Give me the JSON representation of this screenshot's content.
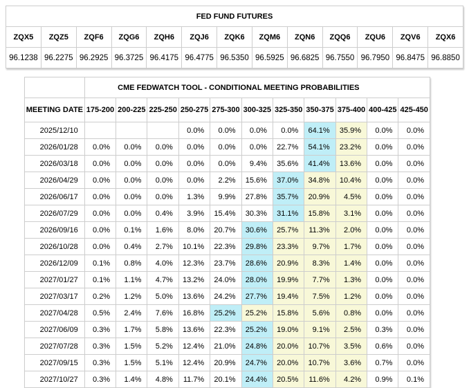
{
  "colors": {
    "highlight_blue": "#bfeef7",
    "highlight_yellow": "#f8f8d8",
    "border": "#cdcdcd",
    "text": "#000000",
    "background": "#ffffff"
  },
  "futures_table": {
    "title": "FED FUND FUTURES",
    "contracts": [
      {
        "code": "ZQX5",
        "price": "96.1238"
      },
      {
        "code": "ZQZ5",
        "price": "96.2275"
      },
      {
        "code": "ZQF6",
        "price": "96.2925"
      },
      {
        "code": "ZQG6",
        "price": "96.3725"
      },
      {
        "code": "ZQH6",
        "price": "96.4175"
      },
      {
        "code": "ZQJ6",
        "price": "96.4775"
      },
      {
        "code": "ZQK6",
        "price": "96.5350"
      },
      {
        "code": "ZQM6",
        "price": "96.5925"
      },
      {
        "code": "ZQN6",
        "price": "96.6825"
      },
      {
        "code": "ZQQ6",
        "price": "96.7550"
      },
      {
        "code": "ZQU6",
        "price": "96.7950"
      },
      {
        "code": "ZQV6",
        "price": "96.8475"
      },
      {
        "code": "ZQX6",
        "price": "96.8850"
      }
    ]
  },
  "fedwatch_table": {
    "title": "CME FEDWATCH TOOL - CONDITIONAL MEETING PROBABILITIES",
    "date_column_header": "MEETING DATE",
    "rate_range_headers": [
      "175-200",
      "200-225",
      "225-250",
      "250-275",
      "275-300",
      "300-325",
      "325-350",
      "350-375",
      "375-400",
      "400-425",
      "425-450"
    ],
    "rows": [
      {
        "date": "2025/12/10",
        "values": [
          "",
          "",
          "",
          "0.0%",
          "0.0%",
          "0.0%",
          "0.0%",
          "64.1%",
          "35.9%",
          "0.0%",
          "0.0%"
        ],
        "blue": 7,
        "yellow": [
          8
        ]
      },
      {
        "date": "2026/01/28",
        "values": [
          "0.0%",
          "0.0%",
          "0.0%",
          "0.0%",
          "0.0%",
          "0.0%",
          "22.7%",
          "54.1%",
          "23.2%",
          "0.0%",
          "0.0%"
        ],
        "blue": 7,
        "yellow": [
          8
        ]
      },
      {
        "date": "2026/03/18",
        "values": [
          "0.0%",
          "0.0%",
          "0.0%",
          "0.0%",
          "0.0%",
          "9.4%",
          "35.6%",
          "41.4%",
          "13.6%",
          "0.0%",
          "0.0%"
        ],
        "blue": 7,
        "yellow": [
          8
        ]
      },
      {
        "date": "2026/04/29",
        "values": [
          "0.0%",
          "0.0%",
          "0.0%",
          "0.0%",
          "2.2%",
          "15.6%",
          "37.0%",
          "34.8%",
          "10.4%",
          "0.0%",
          "0.0%"
        ],
        "blue": 6,
        "yellow": [
          7,
          8
        ]
      },
      {
        "date": "2026/06/17",
        "values": [
          "0.0%",
          "0.0%",
          "0.0%",
          "1.3%",
          "9.9%",
          "27.8%",
          "35.7%",
          "20.9%",
          "4.5%",
          "0.0%",
          "0.0%"
        ],
        "blue": 6,
        "yellow": [
          7,
          8
        ]
      },
      {
        "date": "2026/07/29",
        "values": [
          "0.0%",
          "0.0%",
          "0.4%",
          "3.9%",
          "15.4%",
          "30.3%",
          "31.1%",
          "15.8%",
          "3.1%",
          "0.0%",
          "0.0%"
        ],
        "blue": 6,
        "yellow": [
          7,
          8
        ]
      },
      {
        "date": "2026/09/16",
        "values": [
          "0.0%",
          "0.1%",
          "1.6%",
          "8.0%",
          "20.7%",
          "30.6%",
          "25.7%",
          "11.3%",
          "2.0%",
          "0.0%",
          "0.0%"
        ],
        "blue": 5,
        "yellow": [
          6,
          7,
          8
        ]
      },
      {
        "date": "2026/10/28",
        "values": [
          "0.0%",
          "0.4%",
          "2.7%",
          "10.1%",
          "22.3%",
          "29.8%",
          "23.3%",
          "9.7%",
          "1.7%",
          "0.0%",
          "0.0%"
        ],
        "blue": 5,
        "yellow": [
          6,
          7,
          8
        ]
      },
      {
        "date": "2026/12/09",
        "values": [
          "0.1%",
          "0.8%",
          "4.0%",
          "12.3%",
          "23.7%",
          "28.6%",
          "20.9%",
          "8.3%",
          "1.4%",
          "0.0%",
          "0.0%"
        ],
        "blue": 5,
        "yellow": [
          6,
          7,
          8
        ]
      },
      {
        "date": "2027/01/27",
        "values": [
          "0.1%",
          "1.1%",
          "4.7%",
          "13.2%",
          "24.0%",
          "28.0%",
          "19.9%",
          "7.7%",
          "1.3%",
          "0.0%",
          "0.0%"
        ],
        "blue": 5,
        "yellow": [
          6,
          7,
          8
        ]
      },
      {
        "date": "2027/03/17",
        "values": [
          "0.2%",
          "1.2%",
          "5.0%",
          "13.6%",
          "24.2%",
          "27.7%",
          "19.4%",
          "7.5%",
          "1.2%",
          "0.0%",
          "0.0%"
        ],
        "blue": 5,
        "yellow": [
          6,
          7,
          8
        ]
      },
      {
        "date": "2027/04/28",
        "values": [
          "0.5%",
          "2.4%",
          "7.6%",
          "16.8%",
          "25.2%",
          "25.2%",
          "15.8%",
          "5.6%",
          "0.8%",
          "0.0%",
          "0.0%"
        ],
        "blue": 4,
        "yellow": [
          5,
          6,
          7,
          8
        ]
      },
      {
        "date": "2027/06/09",
        "values": [
          "0.3%",
          "1.7%",
          "5.8%",
          "13.6%",
          "22.3%",
          "25.2%",
          "19.0%",
          "9.1%",
          "2.5%",
          "0.3%",
          "0.0%"
        ],
        "blue": 5,
        "yellow": [
          6,
          7,
          8
        ]
      },
      {
        "date": "2027/07/28",
        "values": [
          "0.3%",
          "1.5%",
          "5.2%",
          "12.4%",
          "21.0%",
          "24.8%",
          "20.0%",
          "10.7%",
          "3.5%",
          "0.6%",
          "0.0%"
        ],
        "blue": 5,
        "yellow": [
          6,
          7,
          8
        ]
      },
      {
        "date": "2027/09/15",
        "values": [
          "0.3%",
          "1.5%",
          "5.1%",
          "12.4%",
          "20.9%",
          "24.7%",
          "20.0%",
          "10.7%",
          "3.6%",
          "0.7%",
          "0.0%"
        ],
        "blue": 5,
        "yellow": [
          6,
          7,
          8
        ]
      },
      {
        "date": "2027/10/27",
        "values": [
          "0.3%",
          "1.4%",
          "4.8%",
          "11.7%",
          "20.1%",
          "24.4%",
          "20.5%",
          "11.6%",
          "4.2%",
          "0.9%",
          "0.1%"
        ],
        "blue": 5,
        "yellow": [
          6,
          7,
          8
        ]
      }
    ]
  }
}
